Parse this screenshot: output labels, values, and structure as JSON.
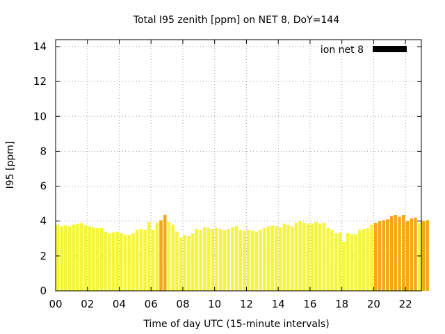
{
  "chart_data": {
    "type": "bar",
    "title": "Total I95 zenith [ppm] on NET 8, DoY=144",
    "xlabel": "Time of day UTC (15-minute intervals)",
    "ylabel": "I95 [ppm]",
    "xlim": [
      0,
      23
    ],
    "ylim": [
      0,
      14.4
    ],
    "x_ticks": [
      {
        "value": 0,
        "label": "00"
      },
      {
        "value": 2,
        "label": "02"
      },
      {
        "value": 4,
        "label": "04"
      },
      {
        "value": 6,
        "label": "06"
      },
      {
        "value": 8,
        "label": "08"
      },
      {
        "value": 10,
        "label": "10"
      },
      {
        "value": 12,
        "label": "12"
      },
      {
        "value": 14,
        "label": "14"
      },
      {
        "value": 16,
        "label": "16"
      },
      {
        "value": 18,
        "label": "18"
      },
      {
        "value": 20,
        "label": "20"
      },
      {
        "value": 22,
        "label": "22"
      }
    ],
    "y_ticks": [
      0,
      2,
      4,
      6,
      8,
      10,
      12,
      14
    ],
    "grid": true,
    "legend": {
      "label": "ion net 8",
      "position": "top-right",
      "color": "#000000"
    },
    "colors": {
      "normal": "#f5f53a",
      "elevated": "#f2a818"
    },
    "interval_hours": 0.25,
    "values": [
      3.8,
      3.7,
      3.75,
      3.7,
      3.8,
      3.85,
      3.9,
      3.75,
      3.7,
      3.65,
      3.6,
      3.6,
      3.4,
      3.3,
      3.35,
      3.4,
      3.3,
      3.2,
      3.2,
      3.3,
      3.5,
      3.55,
      3.5,
      3.95,
      3.5,
      3.9,
      4.05,
      4.35,
      3.95,
      3.8,
      3.4,
      3.05,
      3.2,
      3.15,
      3.3,
      3.55,
      3.5,
      3.65,
      3.6,
      3.55,
      3.6,
      3.55,
      3.5,
      3.55,
      3.65,
      3.7,
      3.5,
      3.45,
      3.5,
      3.45,
      3.4,
      3.5,
      3.6,
      3.7,
      3.75,
      3.7,
      3.65,
      3.85,
      3.8,
      3.7,
      3.9,
      4.0,
      3.9,
      3.85,
      3.85,
      3.95,
      3.85,
      3.9,
      3.6,
      3.5,
      3.3,
      3.35,
      2.8,
      3.3,
      3.25,
      3.25,
      3.5,
      3.55,
      3.6,
      3.8,
      3.9,
      4.0,
      4.05,
      4.1,
      4.3,
      4.35,
      4.25,
      4.35,
      4.0,
      4.15,
      4.2,
      3.9,
      4.0,
      4.05
    ],
    "elevated_indices": [
      26,
      27,
      80,
      81,
      82,
      83,
      84,
      85,
      86,
      87,
      88,
      89,
      90,
      92,
      93
    ]
  }
}
